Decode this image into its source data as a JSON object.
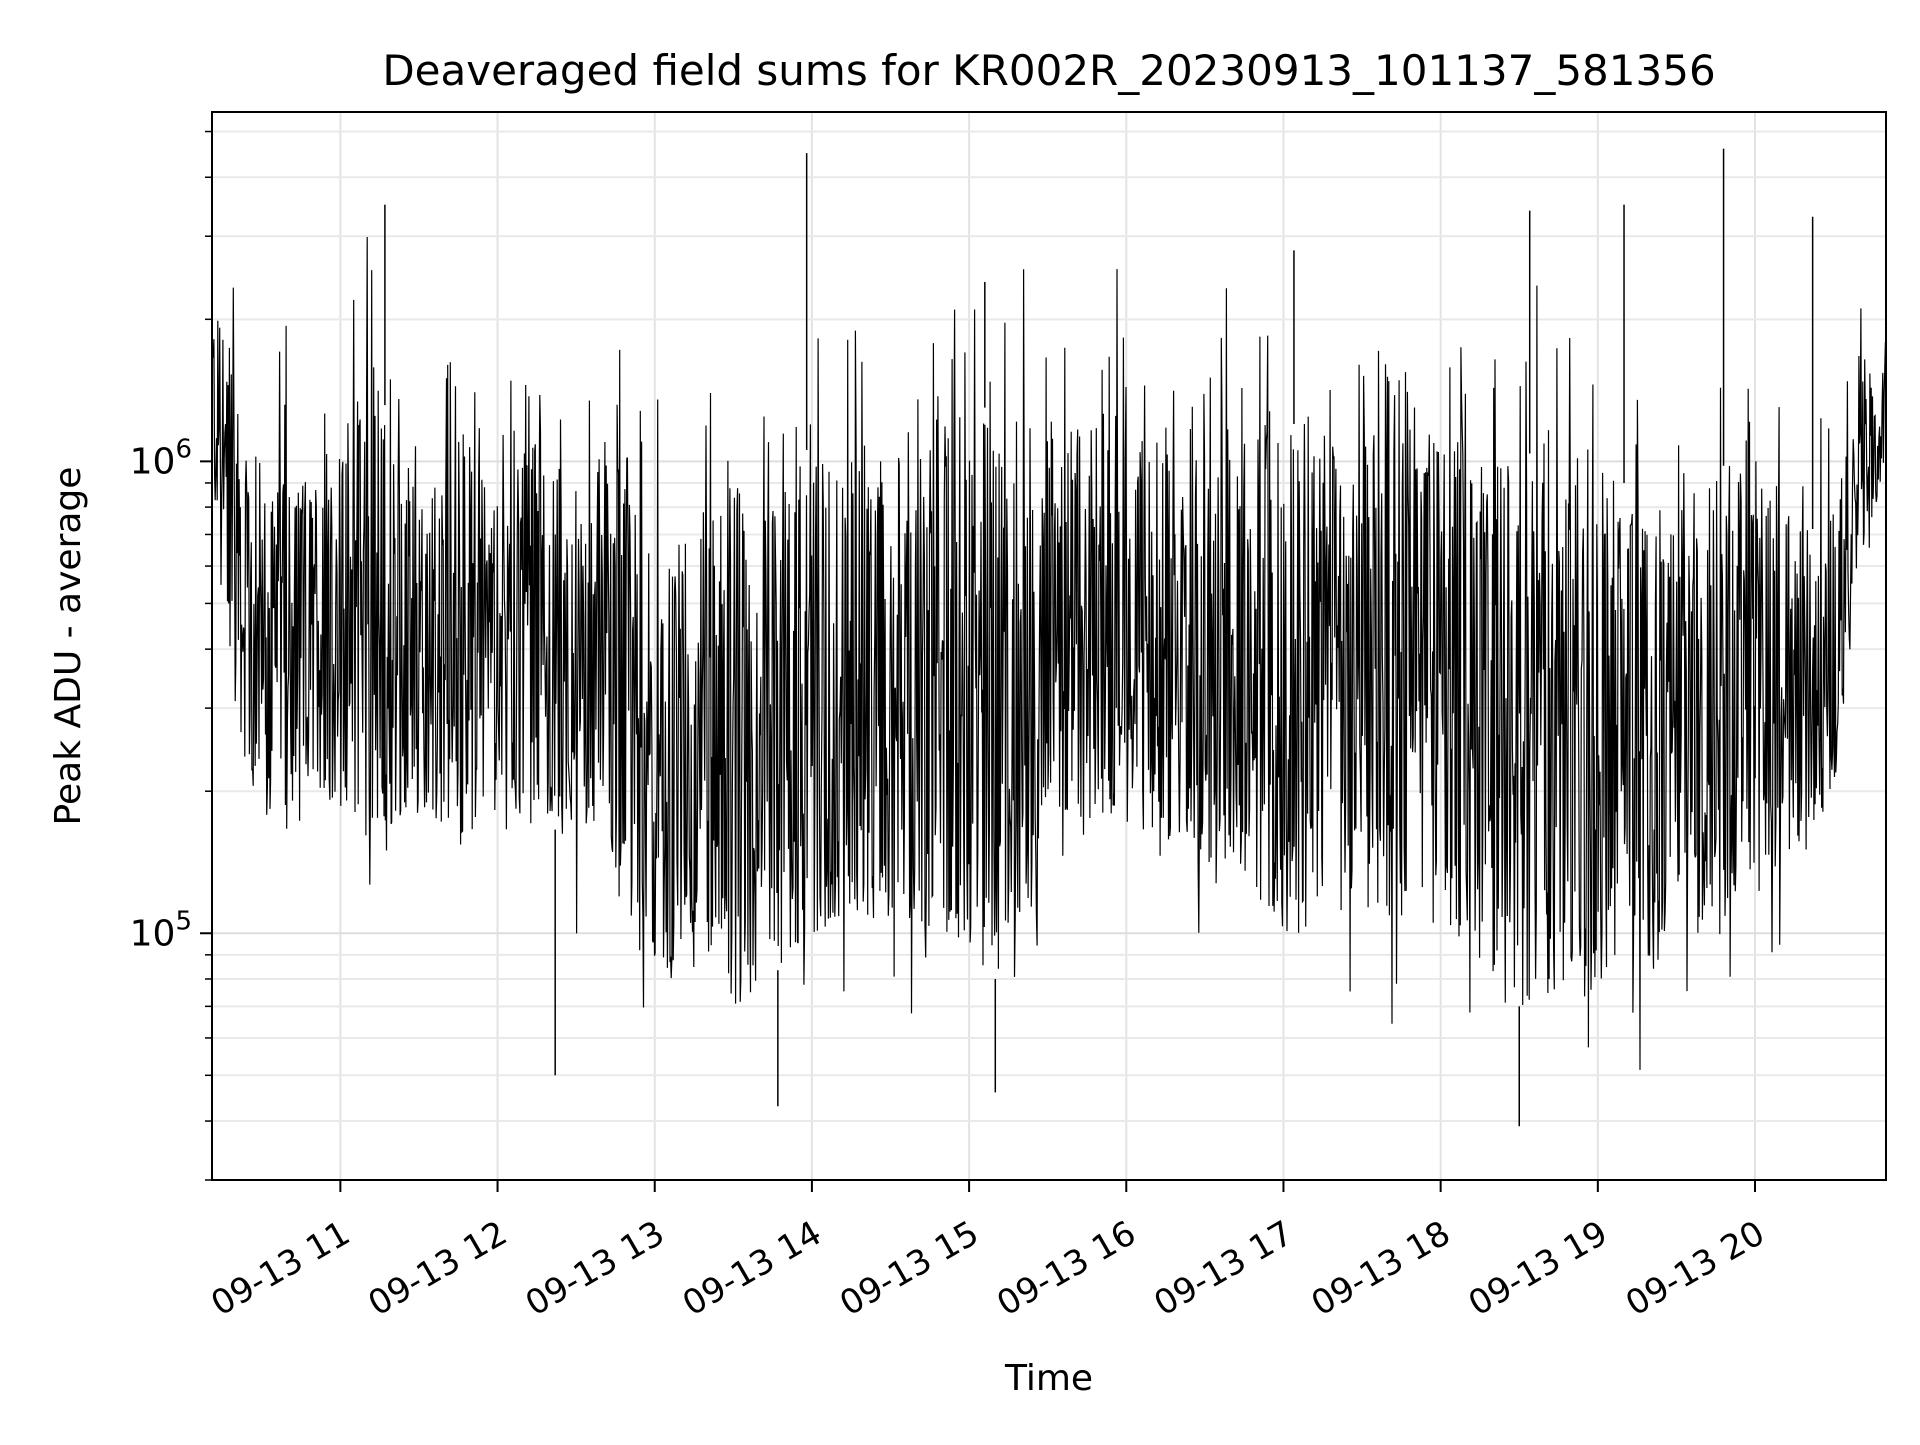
{
  "chart_data": {
    "type": "line",
    "title": "Deaveraged field sums for KR002R_20230913_101137_581356",
    "xlabel": "Time",
    "ylabel": "Peak ADU - average",
    "y_scale": "log",
    "ylim": [
      30000,
      5500000
    ],
    "xlim": [
      "2023-09-13 10:11",
      "2023-09-13 20:50"
    ],
    "grid": true,
    "line_color": "#000000",
    "x_ticks": [
      {
        "t": "2023-09-13 11:00",
        "label": "09-13 11"
      },
      {
        "t": "2023-09-13 12:00",
        "label": "09-13 12"
      },
      {
        "t": "2023-09-13 13:00",
        "label": "09-13 13"
      },
      {
        "t": "2023-09-13 14:00",
        "label": "09-13 14"
      },
      {
        "t": "2023-09-13 15:00",
        "label": "09-13 15"
      },
      {
        "t": "2023-09-13 16:00",
        "label": "09-13 16"
      },
      {
        "t": "2023-09-13 17:00",
        "label": "09-13 17"
      },
      {
        "t": "2023-09-13 18:00",
        "label": "09-13 18"
      },
      {
        "t": "2023-09-13 19:00",
        "label": "09-13 19"
      },
      {
        "t": "2023-09-13 20:00",
        "label": "09-13 20"
      }
    ],
    "y_ticks": [
      {
        "value": 100000,
        "base": "10",
        "exp": "5"
      },
      {
        "value": 1000000,
        "base": "10",
        "exp": "6"
      }
    ],
    "series": [
      {
        "x": [
          "2023-09-13 10:11",
          "2023-09-13 10:15",
          "2023-09-13 10:20",
          "2023-09-13 10:25",
          "2023-09-13 10:30",
          "2023-09-13 10:40",
          "2023-09-13 10:50",
          "2023-09-13 11:00",
          "2023-09-13 11:10",
          "2023-09-13 11:20",
          "2023-09-13 11:30",
          "2023-09-13 11:40",
          "2023-09-13 11:50",
          "2023-09-13 12:00",
          "2023-09-13 12:10",
          "2023-09-13 12:20",
          "2023-09-13 12:30",
          "2023-09-13 12:40",
          "2023-09-13 12:50",
          "2023-09-13 13:00",
          "2023-09-13 13:10",
          "2023-09-13 13:20",
          "2023-09-13 13:30",
          "2023-09-13 13:40",
          "2023-09-13 13:50",
          "2023-09-13 14:00",
          "2023-09-13 14:10",
          "2023-09-13 14:20",
          "2023-09-13 14:30",
          "2023-09-13 14:40",
          "2023-09-13 14:50",
          "2023-09-13 15:00",
          "2023-09-13 15:10",
          "2023-09-13 15:20",
          "2023-09-13 15:30",
          "2023-09-13 15:40",
          "2023-09-13 15:50",
          "2023-09-13 16:00",
          "2023-09-13 16:10",
          "2023-09-13 16:20",
          "2023-09-13 16:30",
          "2023-09-13 16:40",
          "2023-09-13 16:50",
          "2023-09-13 17:00",
          "2023-09-13 17:10",
          "2023-09-13 17:20",
          "2023-09-13 17:30",
          "2023-09-13 17:40",
          "2023-09-13 17:50",
          "2023-09-13 18:00",
          "2023-09-13 18:10",
          "2023-09-13 18:20",
          "2023-09-13 18:30",
          "2023-09-13 18:40",
          "2023-09-13 18:50",
          "2023-09-13 19:00",
          "2023-09-13 19:10",
          "2023-09-13 19:20",
          "2023-09-13 19:30",
          "2023-09-13 19:40",
          "2023-09-13 19:50",
          "2023-09-13 20:00",
          "2023-09-13 20:10",
          "2023-09-13 20:20",
          "2023-09-13 20:30",
          "2023-09-13 20:40",
          "2023-09-13 20:50"
        ],
        "upper": [
          2400000,
          1800000,
          1700000,
          900000,
          800000,
          1000000,
          900000,
          1100000,
          2000000,
          1100000,
          900000,
          1100000,
          1200000,
          800000,
          1000000,
          1000000,
          900000,
          1200000,
          1100000,
          700000,
          700000,
          800000,
          900000,
          800000,
          900000,
          1100000,
          1000000,
          1100000,
          1000000,
          900000,
          1300000,
          1300000,
          1300000,
          1200000,
          1300000,
          1200000,
          1200000,
          1200000,
          1200000,
          1200000,
          1200000,
          1200000,
          1200000,
          1200000,
          1200000,
          1100000,
          1200000,
          1100000,
          1100000,
          1100000,
          1100000,
          1000000,
          1000000,
          1100000,
          1100000,
          1000000,
          900000,
          900000,
          800000,
          900000,
          1000000,
          900000,
          900000,
          700000,
          800000,
          1500000,
          2000000
        ],
        "lower": [
          800000,
          600000,
          300000,
          200000,
          180000,
          150000,
          200000,
          180000,
          160000,
          170000,
          180000,
          170000,
          160000,
          180000,
          170000,
          170000,
          150000,
          160000,
          100000,
          80000,
          80000,
          80000,
          70000,
          70000,
          90000,
          100000,
          100000,
          110000,
          100000,
          100000,
          100000,
          90000,
          80000,
          80000,
          200000,
          150000,
          180000,
          170000,
          150000,
          140000,
          130000,
          120000,
          110000,
          100000,
          100000,
          110000,
          110000,
          100000,
          110000,
          100000,
          90000,
          80000,
          70000,
          70000,
          80000,
          80000,
          80000,
          80000,
          90000,
          100000,
          110000,
          120000,
          140000,
          150000,
          200000,
          600000,
          900000
        ],
        "spikes": [
          {
            "t": "2023-09-13 11:17",
            "value": 3500000
          },
          {
            "t": "2023-09-13 12:22",
            "value": 50000
          },
          {
            "t": "2023-09-13 13:58",
            "value": 4500000
          },
          {
            "t": "2023-09-13 13:47",
            "value": 43000
          },
          {
            "t": "2023-09-13 15:06",
            "value": 2400000
          },
          {
            "t": "2023-09-13 15:10",
            "value": 46000
          },
          {
            "t": "2023-09-13 17:04",
            "value": 2800000
          },
          {
            "t": "2023-09-13 18:34",
            "value": 3400000
          },
          {
            "t": "2023-09-13 18:30",
            "value": 39000
          },
          {
            "t": "2023-09-13 19:10",
            "value": 3500000
          },
          {
            "t": "2023-09-13 19:48",
            "value": 4600000
          },
          {
            "t": "2023-09-13 20:22",
            "value": 3300000
          }
        ]
      }
    ]
  }
}
